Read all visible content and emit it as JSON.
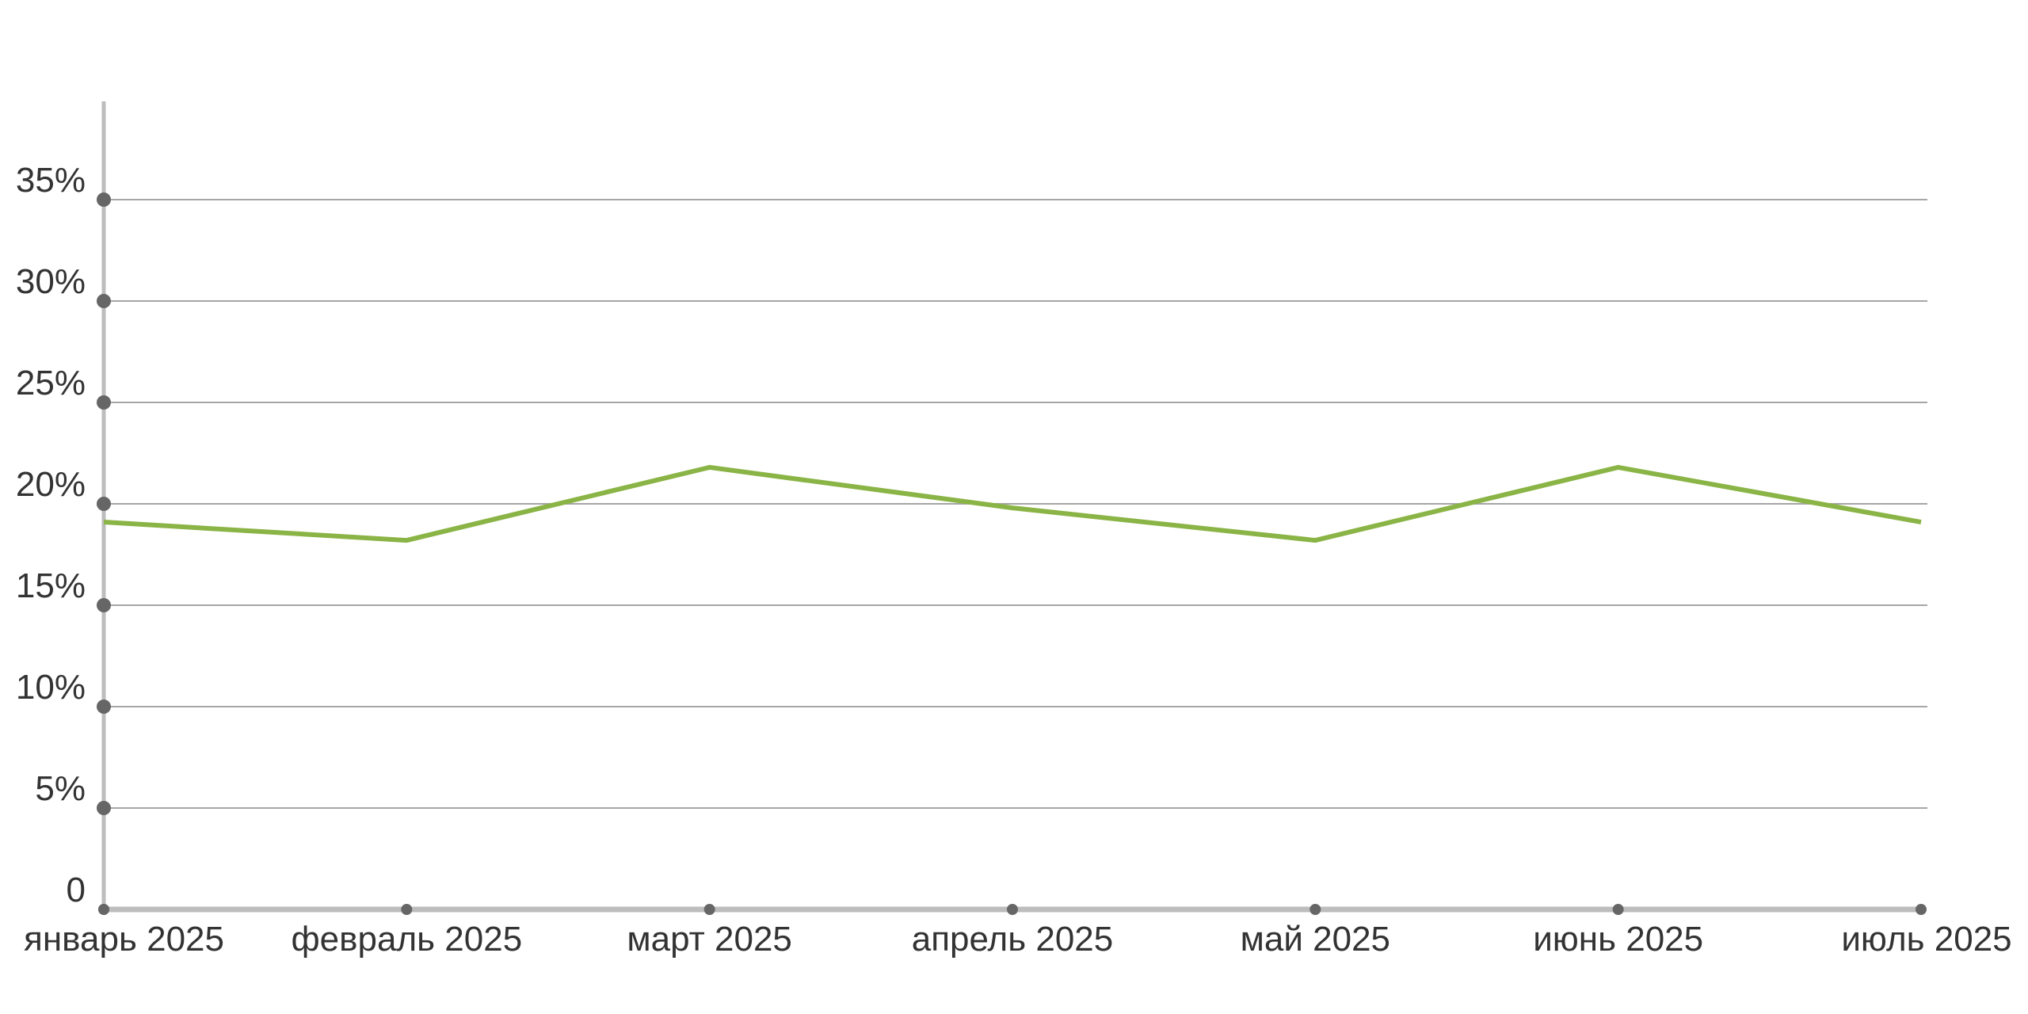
{
  "chart_data": {
    "type": "line",
    "categories": [
      "январь 2025",
      "февраль 2025",
      "март 2025",
      "апрель 2025",
      "май  2025",
      "июнь 2025",
      "июль 2025"
    ],
    "series": [
      {
        "values": [
          19.1,
          18.2,
          21.8,
          19.8,
          18.2,
          21.8,
          19.1
        ]
      }
    ],
    "yticks": [
      "0",
      "5%",
      "10%",
      "15%",
      "20%",
      "25%",
      "30%",
      "35%"
    ],
    "ylim": [
      0,
      38.5
    ],
    "y_unit": "%",
    "grid": true,
    "legend": "none",
    "colors": {
      "line": "#8ab446",
      "axis": "#bdbdbd",
      "grid": "#a6a6a6",
      "marker": "#666666",
      "text": "#333333"
    }
  }
}
